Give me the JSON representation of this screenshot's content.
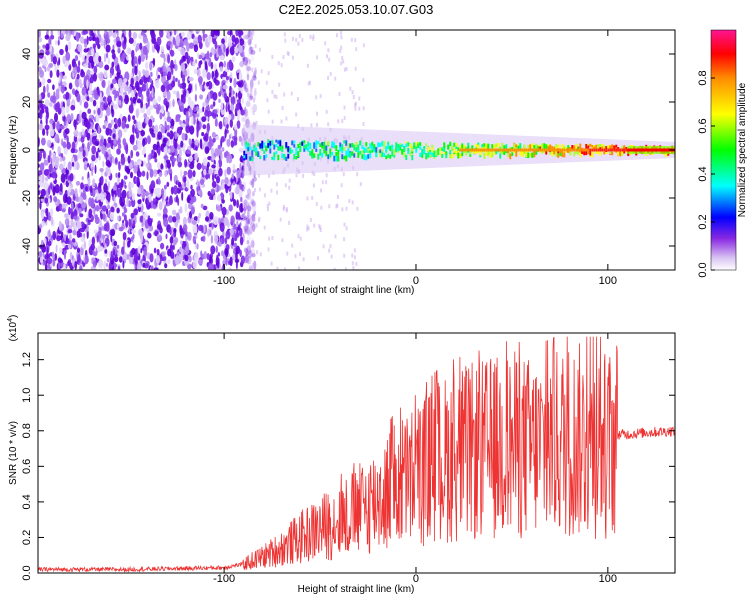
{
  "figure_title": "C2E2.2025.053.10.07.G03",
  "chart_data": [
    {
      "type": "heatmap",
      "xlabel": "Height of straight line (km)",
      "ylabel": "Frequency (Hz)",
      "xlim": [
        -197,
        135
      ],
      "ylim": [
        -50,
        50
      ],
      "xticks": [
        -100,
        0,
        100
      ],
      "yticks": [
        -40,
        -20,
        0,
        20,
        40
      ],
      "noise_region_x": [
        -197,
        -90
      ],
      "ridge_center_hz": 0,
      "colorbar": {
        "label": "Normalized spectral amplitude",
        "range": [
          0,
          1
        ],
        "ticks": [
          "0.0",
          "0.2",
          "0.4",
          "0.6",
          "0.8"
        ],
        "tick_values": [
          0,
          0.2,
          0.4,
          0.6,
          0.8
        ],
        "colors": [
          "#ffffff",
          "#c9a8ef",
          "#8a2be2",
          "#0000ff",
          "#00ffff",
          "#00ff00",
          "#ffff00",
          "#ff8c00",
          "#ff0000",
          "#ff1493"
        ]
      },
      "grid": false
    },
    {
      "type": "line",
      "xlabel": "Height of straight line (km)",
      "ylabel": "SNR (10 * v/v)",
      "y_multiplier": "(x10",
      "y_multiplier_exp": "4",
      "y_multiplier_close": ")",
      "xlim": [
        -197,
        135
      ],
      "ylim": [
        0,
        1.35
      ],
      "xticks": [
        -100,
        0,
        100
      ],
      "yticks": [
        "0.0",
        "0.2",
        "0.4",
        "0.6",
        "0.8",
        "1.0",
        "1.2"
      ],
      "ytick_values": [
        0,
        0.2,
        0.4,
        0.6,
        0.8,
        1.0,
        1.2
      ],
      "color": "#ee3333",
      "series": [
        {
          "values": [
            [
              -197,
              0.02
            ],
            [
              -150,
              0.02
            ],
            [
              -100,
              0.03
            ],
            [
              -90,
              0.05
            ],
            [
              -80,
              0.09
            ],
            [
              -70,
              0.14
            ],
            [
              -60,
              0.2
            ],
            [
              -50,
              0.25
            ],
            [
              -40,
              0.3
            ],
            [
              -30,
              0.35
            ],
            [
              -20,
              0.42
            ],
            [
              -10,
              0.5
            ],
            [
              0,
              0.55
            ],
            [
              10,
              0.62
            ],
            [
              20,
              0.66
            ],
            [
              30,
              0.68
            ],
            [
              40,
              0.7
            ],
            [
              50,
              0.72
            ],
            [
              60,
              0.7
            ],
            [
              70,
              0.72
            ],
            [
              80,
              0.75
            ],
            [
              90,
              0.74
            ],
            [
              100,
              0.72
            ],
            [
              105,
              0.78
            ],
            [
              110,
              0.78
            ],
            [
              120,
              0.79
            ],
            [
              135,
              0.8
            ]
          ]
        }
      ],
      "grid": false
    }
  ]
}
